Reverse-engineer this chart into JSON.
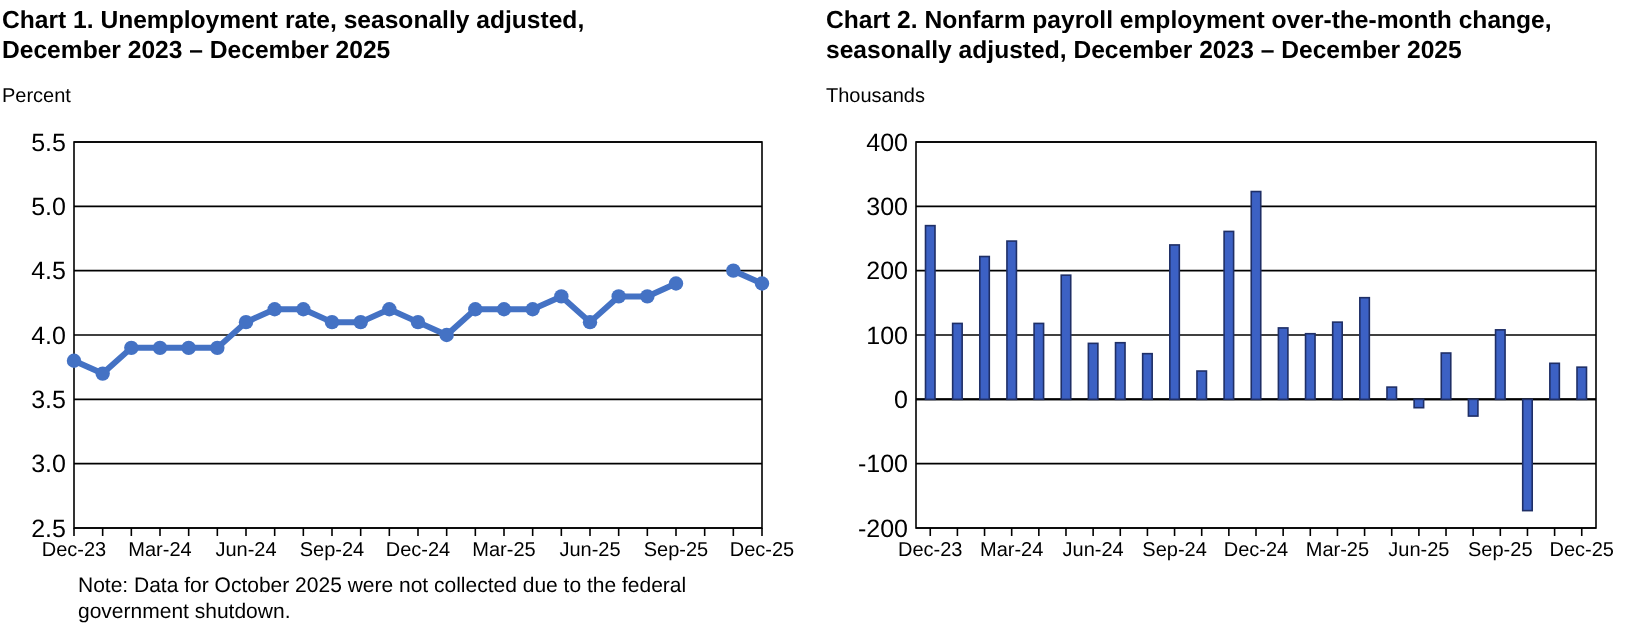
{
  "chart_data": [
    {
      "type": "line",
      "title": "Chart 1. Unemployment rate, seasonally adjusted,\nDecember 2023 – December 2025",
      "ylabel": "Percent",
      "categories": [
        "Dec-23",
        null,
        null,
        "Mar-24",
        null,
        null,
        "Jun-24",
        null,
        null,
        "Sep-24",
        null,
        null,
        "Dec-24",
        null,
        null,
        "Mar-25",
        null,
        null,
        "Jun-25",
        null,
        null,
        "Sep-25",
        null,
        null,
        "Dec-25"
      ],
      "series": [
        {
          "color": "#4472c4",
          "values": [
            3.8,
            3.7,
            3.9,
            3.9,
            3.9,
            3.9,
            4.1,
            4.2,
            4.2,
            4.1,
            4.1,
            4.2,
            4.1,
            4.0,
            4.2,
            4.2,
            4.2,
            4.3,
            4.1,
            4.3,
            4.3,
            4.4,
            null,
            4.5,
            4.4
          ]
        }
      ],
      "ylim": [
        2.5,
        5.5
      ],
      "yticks": [
        {
          "value": 2.5,
          "label": "2.5"
        },
        {
          "value": 3,
          "label": "3.0"
        },
        {
          "value": 3.5,
          "label": "3.5"
        },
        {
          "value": 4,
          "label": "4.0"
        },
        {
          "value": 4.5,
          "label": "4.5"
        },
        {
          "value": 5,
          "label": "5.0"
        },
        {
          "value": 5.5,
          "label": "5.5"
        }
      ],
      "grid": "y",
      "marker": "circle",
      "line_style": "solid",
      "annotations": [
        "Note: Data for October 2025 were not collected due to the federal\ngovernment shutdown."
      ]
    },
    {
      "type": "bar",
      "title": "Chart 2. Nonfarm payroll employment over-the-month change,\nseasonally adjusted, December 2023 – December 2025",
      "ylabel": "Thousands",
      "categories": [
        "Dec-23",
        null,
        null,
        "Mar-24",
        null,
        null,
        "Jun-24",
        null,
        null,
        "Sep-24",
        null,
        null,
        "Dec-24",
        null,
        null,
        "Mar-25",
        null,
        null,
        "Jun-25",
        null,
        null,
        "Sep-25",
        null,
        null,
        "Dec-25"
      ],
      "series": [
        {
          "color": "#3c61c4",
          "values": [
            270,
            118,
            222,
            246,
            118,
            193,
            87,
            88,
            71,
            240,
            44,
            261,
            323,
            111,
            102,
            120,
            158,
            19,
            -13,
            72,
            -26,
            108,
            -173,
            56,
            50
          ]
        }
      ],
      "ylim": [
        -200,
        400
      ],
      "yticks": [
        -200,
        -100,
        0,
        100,
        200,
        300,
        400
      ],
      "grid": "y"
    }
  ]
}
